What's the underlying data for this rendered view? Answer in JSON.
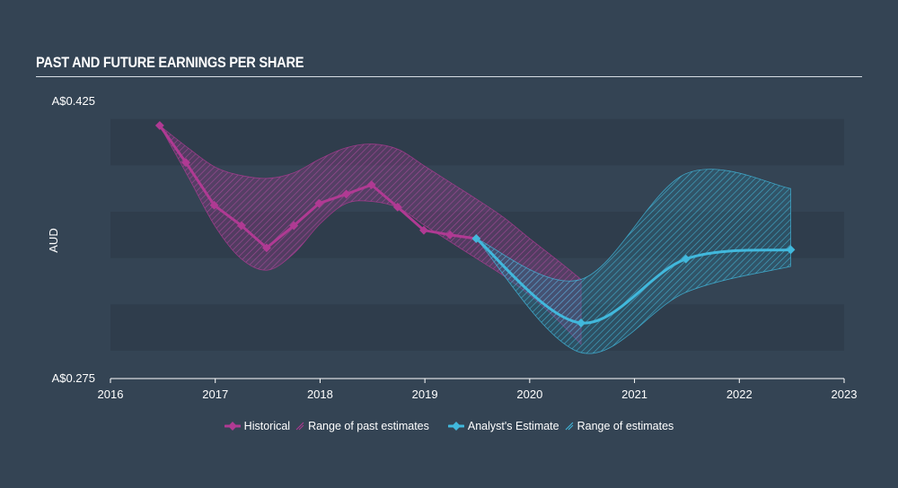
{
  "title": "PAST AND FUTURE EARNINGS PER SHARE",
  "colors": {
    "background": "#344454",
    "band": "#2f3d4c",
    "historical": "#b03a93",
    "estimate": "#41b8dc",
    "text": "#ffffff"
  },
  "legend": {
    "historical": "Historical",
    "past_range": "Range of past estimates",
    "estimate": "Analyst's Estimate",
    "estimate_range": "Range of estimates"
  },
  "chart_data": {
    "type": "line",
    "ylabel": "AUD",
    "ylim": [
      0.275,
      0.425
    ],
    "xlim": [
      2016,
      2023
    ],
    "y_tick_labels": [
      "A$0.425",
      "A$0.275"
    ],
    "x_tick_labels": [
      "2016",
      "2017",
      "2018",
      "2019",
      "2020",
      "2021",
      "2022",
      "2023"
    ],
    "grid": "alternating horizontal bands",
    "legend_position": "bottom-center",
    "series": [
      {
        "name": "Historical",
        "x": [
          2016.47,
          2016.72,
          2016.99,
          2017.25,
          2017.49,
          2017.75,
          2017.99,
          2018.25,
          2018.49,
          2018.74,
          2018.99,
          2019.24,
          2019.49
        ],
        "y": [
          0.4115,
          0.3915,
          0.3685,
          0.3575,
          0.3455,
          0.3575,
          0.3695,
          0.3745,
          0.3795,
          0.3675,
          0.355,
          0.3525,
          0.3505
        ]
      },
      {
        "name": "Analyst's Estimate",
        "x": [
          2019.49,
          2020.49,
          2021.49,
          2022.49
        ],
        "y": [
          0.3505,
          0.305,
          0.3395,
          0.3445
        ]
      }
    ],
    "ranges": [
      {
        "name": "Range of past estimates",
        "x": [
          2016.47,
          2016.75,
          2017.0,
          2017.25,
          2017.5,
          2017.75,
          2018.0,
          2018.25,
          2018.5,
          2018.75,
          2019.0,
          2019.25,
          2019.5,
          2019.75,
          2020.0,
          2020.25,
          2020.49
        ],
        "high": [
          0.4115,
          0.399,
          0.389,
          0.3845,
          0.383,
          0.386,
          0.3935,
          0.3995,
          0.4015,
          0.3985,
          0.3895,
          0.3805,
          0.3715,
          0.362,
          0.3505,
          0.3395,
          0.3285
        ],
        "low": [
          0.4115,
          0.383,
          0.357,
          0.3395,
          0.3335,
          0.3425,
          0.3585,
          0.3695,
          0.3705,
          0.367,
          0.3575,
          0.3485,
          0.3395,
          0.3305,
          0.32,
          0.3075,
          0.2935
        ]
      },
      {
        "name": "Range of estimates",
        "x": [
          2019.49,
          2020.49,
          2021.49,
          2022.49
        ],
        "high": [
          0.3505,
          0.3285,
          0.3855,
          0.3775
        ],
        "low": [
          0.3505,
          0.289,
          0.3215,
          0.3355
        ]
      }
    ]
  }
}
